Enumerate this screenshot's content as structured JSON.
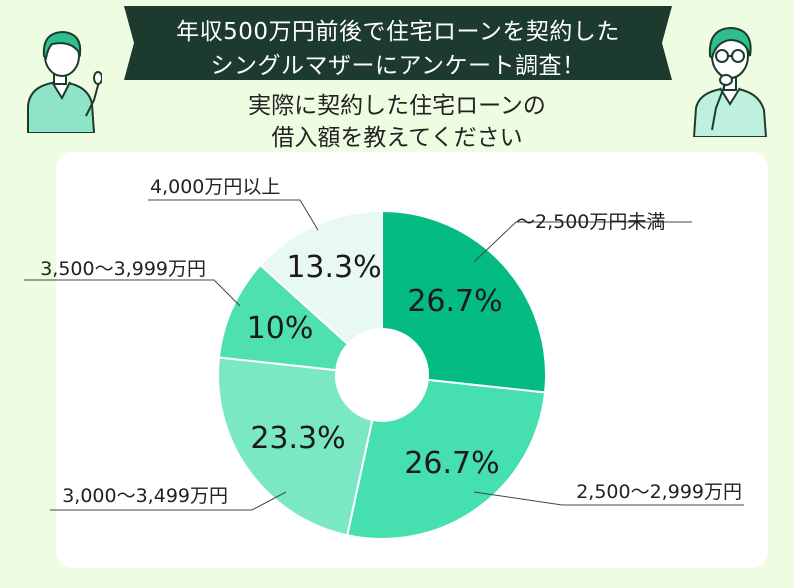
{
  "header": {
    "banner_line1": "年収500万円前後で住宅ローンを契約した",
    "banner_line2": "シングルマザーにアンケート調査！",
    "question_line1": "実際に契約した住宅ローンの",
    "question_line2": "借入額を教えてください"
  },
  "colors": {
    "background": "#eefde2",
    "banner": "#1d3a2e",
    "slice_1": "#04bc83",
    "slice_2": "#45dfb0",
    "slice_3": "#7ae8c5",
    "slice_4": "#4fe0b1",
    "slice_5": "#e8f9f1"
  },
  "icons": [
    "person-pointing-icon",
    "person-thinking-icon"
  ],
  "chart_data": {
    "type": "pie",
    "variant": "donut",
    "start": "top, clockwise",
    "categories": [
      "～2,500万円未満",
      "2,500～2,999万円",
      "3,000～3,499万円",
      "3,500～3,999万円",
      "4,000万円以上"
    ],
    "values": [
      26.7,
      26.7,
      23.3,
      10,
      13.3
    ],
    "value_labels": [
      "26.7%",
      "26.7%",
      "23.3%",
      "10%",
      "13.3%"
    ],
    "unit": "%"
  }
}
